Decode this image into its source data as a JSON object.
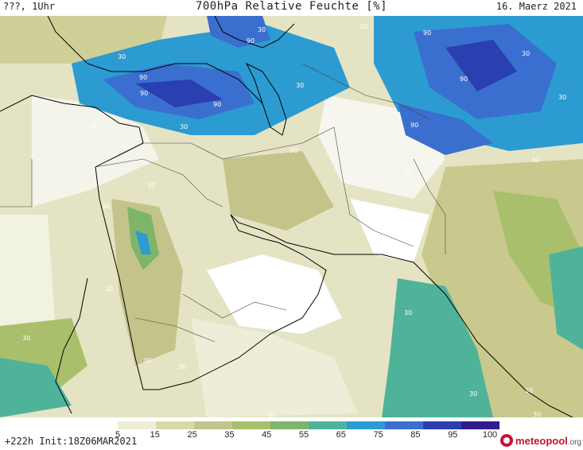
{
  "header": {
    "left": "???, 1Uhr",
    "title": "700hPa Relative Feuchte [%]",
    "date": "16. Maerz 2021"
  },
  "footer": {
    "run": "+222h Init:18Z06MAR2021",
    "logo_main": "meteopool",
    "logo_suffix": ".org"
  },
  "colorbar": {
    "ticks": [
      "5",
      "15",
      "25",
      "35",
      "45",
      "55",
      "65",
      "75",
      "85",
      "95",
      "100"
    ],
    "colors": [
      "#ffffff",
      "#eeeed8",
      "#d9d9a8",
      "#c4c48a",
      "#a9bf6c",
      "#7fb56a",
      "#4fb39a",
      "#2c9bd1",
      "#3a6fcf",
      "#2a3fb0",
      "#301c8c"
    ]
  },
  "map": {
    "contour_labels": [
      "90",
      "90",
      "90",
      "90",
      "90",
      "90",
      "90",
      "30",
      "30",
      "30",
      "30",
      "30",
      "30",
      "30",
      "30",
      "30",
      "30",
      "30",
      "30",
      "30",
      "30",
      "30",
      "30",
      "30",
      "30",
      "30",
      "30",
      "30",
      "30"
    ]
  }
}
